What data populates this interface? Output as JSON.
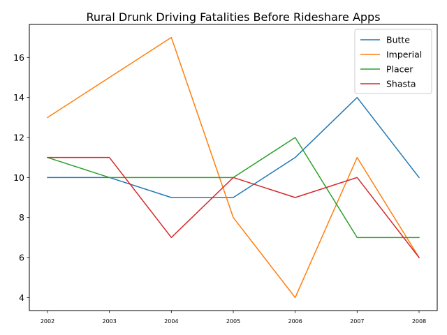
{
  "chart_data": {
    "type": "line",
    "title": "Rural Drunk Driving Fatalities Before Rideshare Apps",
    "xlabel": "",
    "ylabel": "",
    "x": [
      "2002",
      "2003",
      "2004",
      "2005",
      "2006",
      "2007",
      "2008"
    ],
    "yticks": [
      "4",
      "6",
      "8",
      "10",
      "12",
      "14",
      "16"
    ],
    "ylim": [
      3.35,
      17.65
    ],
    "grid": false,
    "legend_position": "top-right",
    "series": [
      {
        "name": "Butte",
        "color": "#1f77b4",
        "values": [
          10,
          10,
          9,
          9,
          11,
          14,
          10
        ]
      },
      {
        "name": "Imperial",
        "color": "#ff7f0e",
        "values": [
          13,
          15,
          17,
          8,
          4,
          11,
          6
        ]
      },
      {
        "name": "Placer",
        "color": "#2ca02c",
        "values": [
          11,
          10,
          10,
          10,
          12,
          7,
          7
        ]
      },
      {
        "name": "Shasta",
        "color": "#d62728",
        "values": [
          11,
          11,
          7,
          10,
          9,
          10,
          6
        ]
      }
    ]
  }
}
